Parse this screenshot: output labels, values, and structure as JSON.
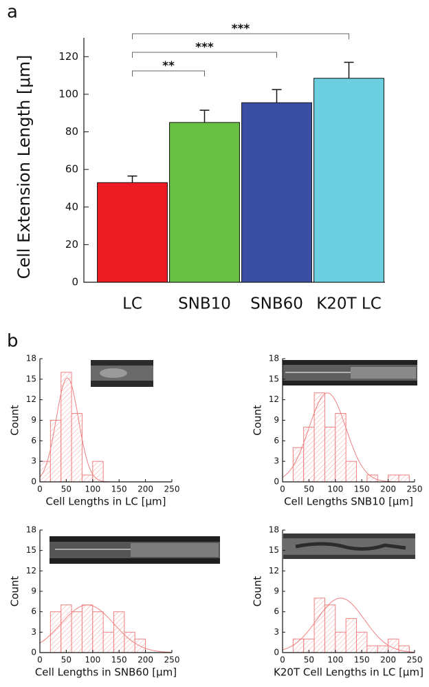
{
  "chart_data": [
    {
      "type": "bar",
      "panel_label": "a",
      "y_label": "Cell Extension Length [μm]",
      "categories": [
        "LC",
        "SNB10",
        "SNB60",
        "K20T LC"
      ],
      "values": [
        53,
        85,
        95.5,
        108.5
      ],
      "errors": [
        3.5,
        6.5,
        7,
        8.5
      ],
      "colors": [
        "#ed1c24",
        "#6abf45",
        "#3a4ea3",
        "#6ccfe0"
      ],
      "ylim": [
        0,
        130
      ],
      "yticks": [
        0,
        20,
        40,
        60,
        80,
        100,
        120
      ],
      "annotations": [
        {
          "from": "LC",
          "to": "SNB10",
          "text": "**"
        },
        {
          "from": "LC",
          "to": "SNB60",
          "text": "***"
        },
        {
          "from": "LC",
          "to": "K20T LC",
          "text": "***"
        }
      ]
    },
    {
      "type": "histogram",
      "panel_label": "b",
      "x_label": "Cell Lengths in LC [μm]",
      "y_label": "Count",
      "color": "#f08080",
      "bins": [
        0,
        20,
        40,
        60,
        80,
        100,
        120
      ],
      "values": [
        3,
        9,
        16,
        10,
        1,
        3
      ],
      "fit": {
        "center": 52,
        "width": 21,
        "height": 15.2
      },
      "xlim": [
        0,
        250
      ],
      "xticks": [
        0,
        50,
        100,
        150,
        200,
        250
      ],
      "ylim": [
        0,
        18
      ],
      "yticks": [
        0,
        3,
        6,
        9,
        12,
        15,
        18
      ]
    },
    {
      "type": "histogram",
      "x_label": "Cell Lengths SNB10 [μm]",
      "y_label": "Count",
      "color": "#f08080",
      "bins": [
        20,
        40,
        60,
        80,
        100,
        120,
        140,
        160,
        180,
        200,
        220,
        240
      ],
      "values": [
        5,
        8,
        13,
        8,
        10,
        3,
        0,
        1,
        0,
        1,
        1
      ],
      "fit": {
        "center": 85,
        "width": 35,
        "height": 13
      },
      "xlim": [
        0,
        250
      ],
      "xticks": [
        0,
        50,
        100,
        150,
        200,
        250
      ],
      "ylim": [
        0,
        18
      ],
      "yticks": [
        0,
        3,
        6,
        9,
        12,
        15,
        18
      ]
    },
    {
      "type": "histogram",
      "x_label": "Cell Lengths in SNB60 [μm]",
      "y_label": "Count",
      "color": "#f08080",
      "bins": [
        20,
        40,
        60,
        80,
        100,
        120,
        140,
        160,
        180,
        200
      ],
      "values": [
        6,
        7,
        6,
        7,
        6,
        3,
        6,
        3,
        2
      ],
      "fit": {
        "center": 90,
        "width": 50,
        "height": 7
      },
      "xlim": [
        0,
        250
      ],
      "xticks": [
        0,
        50,
        100,
        150,
        200,
        250
      ],
      "ylim": [
        0,
        18
      ],
      "yticks": [
        0,
        3,
        6,
        9,
        12,
        15,
        18
      ]
    },
    {
      "type": "histogram",
      "x_label": "K20T Cell Lengths in LC [μm]",
      "y_label": "Count",
      "color": "#f08080",
      "bins": [
        20,
        40,
        60,
        80,
        100,
        120,
        140,
        160,
        180,
        200,
        220,
        240
      ],
      "values": [
        2,
        2,
        8,
        7,
        3,
        5,
        3,
        1,
        1,
        2,
        1
      ],
      "fit": {
        "center": 110,
        "width": 45,
        "height": 8
      },
      "xlim": [
        0,
        250
      ],
      "xticks": [
        0,
        50,
        100,
        150,
        200,
        250
      ],
      "ylim": [
        0,
        18
      ],
      "yticks": [
        0,
        3,
        6,
        9,
        12,
        15,
        18
      ]
    }
  ]
}
